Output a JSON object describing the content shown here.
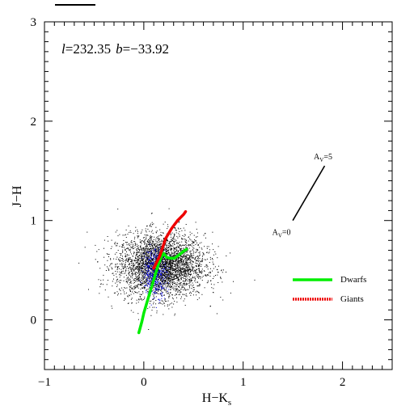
{
  "chart_data": {
    "type": "scatter",
    "xlabel": "H−K",
    "xlabel_sub": "s",
    "ylabel": "J−H",
    "xlim": [
      -1,
      2.5
    ],
    "ylim": [
      -0.5,
      3
    ],
    "xticks": [
      -1,
      0,
      1,
      2
    ],
    "xtick_labels": [
      "−1",
      "0",
      "1",
      "2"
    ],
    "yticks": [
      0,
      1,
      2,
      3
    ],
    "ytick_labels": [
      "0",
      "1",
      "2",
      "3"
    ],
    "annotation": {
      "l_sym": "l",
      "l_val": "=232.35",
      "b_sym": "b",
      "b_val": "=−33.92"
    },
    "reddening_vector": {
      "start": [
        1.5,
        1.0
      ],
      "end": [
        1.82,
        1.55
      ],
      "start_label": "A",
      "start_label_sub": "V",
      "start_label_val": "=0",
      "end_label": "A",
      "end_label_sub": "V",
      "end_label_val": "=5"
    },
    "series": [
      {
        "name": "Dwarfs",
        "color": "#00ee00",
        "x": [
          -0.05,
          -0.02,
          0.0,
          0.03,
          0.06,
          0.09,
          0.12,
          0.15,
          0.18,
          0.2,
          0.23,
          0.27,
          0.31,
          0.35,
          0.4,
          0.43
        ],
        "y": [
          -0.13,
          -0.02,
          0.07,
          0.17,
          0.27,
          0.37,
          0.47,
          0.57,
          0.64,
          0.67,
          0.63,
          0.62,
          0.62,
          0.65,
          0.69,
          0.71
        ]
      },
      {
        "name": "Giants",
        "color": "#ee0000",
        "x": [
          0.1,
          0.13,
          0.16,
          0.18,
          0.2,
          0.22,
          0.25,
          0.28,
          0.31,
          0.34,
          0.37,
          0.4,
          0.42
        ],
        "y": [
          0.52,
          0.58,
          0.64,
          0.7,
          0.76,
          0.82,
          0.87,
          0.92,
          0.96,
          1.0,
          1.03,
          1.06,
          1.09
        ]
      }
    ],
    "scatter_clouds": [
      {
        "color": "#000000",
        "n": 3600,
        "cx": 0.17,
        "cy": 0.55,
        "sx": 0.22,
        "sy": 0.16
      },
      {
        "color": "#0000dd",
        "n": 380,
        "cx": 0.11,
        "cy": 0.48,
        "sx": 0.06,
        "sy": 0.12
      }
    ],
    "legend": {
      "position": "right",
      "entries": [
        "Dwarfs",
        "Giants"
      ]
    }
  }
}
